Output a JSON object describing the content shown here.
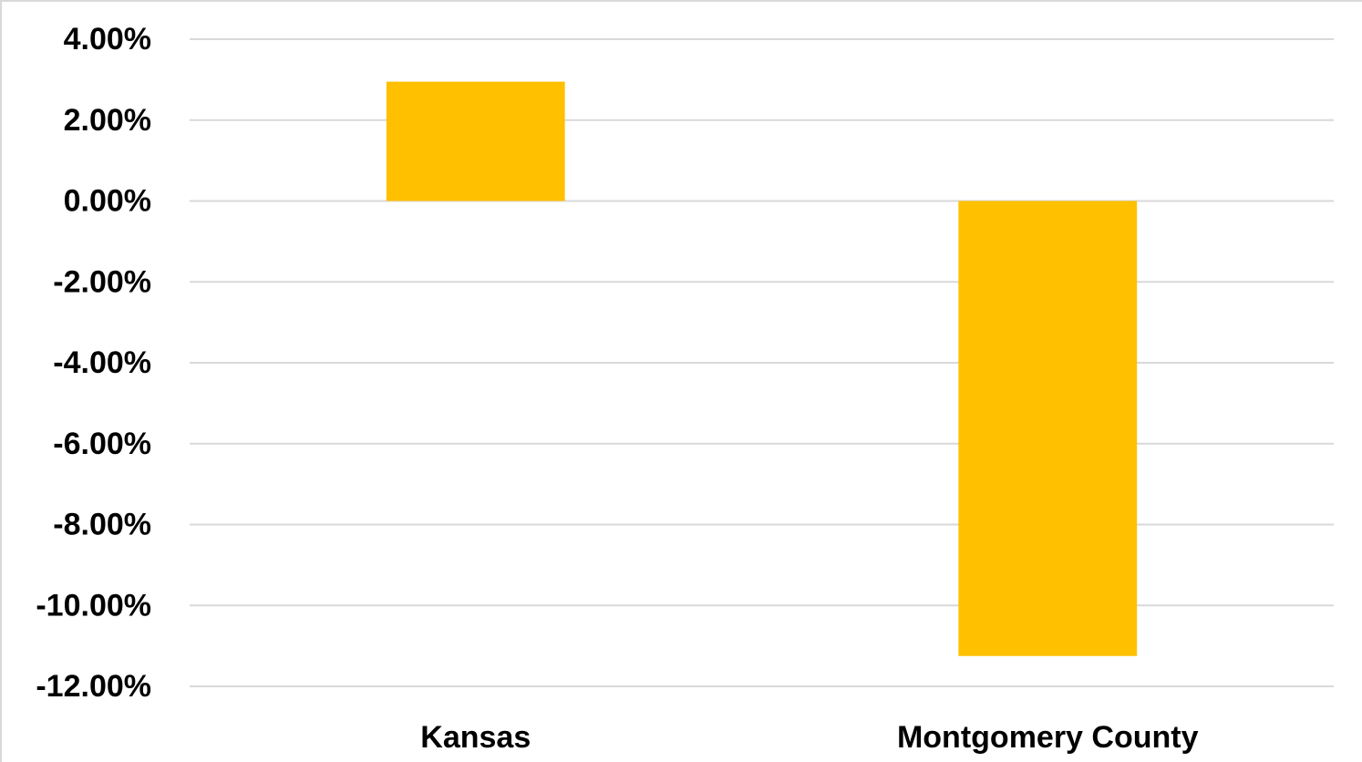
{
  "chart_data": {
    "type": "bar",
    "title": "",
    "xlabel": "",
    "ylabel": "",
    "categories": [
      "Kansas",
      "Montgomery County"
    ],
    "values": [
      2.95,
      -11.25
    ],
    "value_format": "percent",
    "ylim": [
      -12,
      4
    ],
    "yticks": [
      4,
      2,
      0,
      -2,
      -4,
      -6,
      -8,
      -10,
      -12
    ],
    "ytick_labels": [
      "4.00%",
      "2.00%",
      "0.00%",
      "-2.00%",
      "-4.00%",
      "-6.00%",
      "-8.00%",
      "-10.00%",
      "-12.00%"
    ],
    "grid": true,
    "legend": "none",
    "colors": {
      "bar": "#FFC000",
      "grid": "#D9D9D9",
      "text": "#000000",
      "frame": "#D9D9D9"
    }
  }
}
